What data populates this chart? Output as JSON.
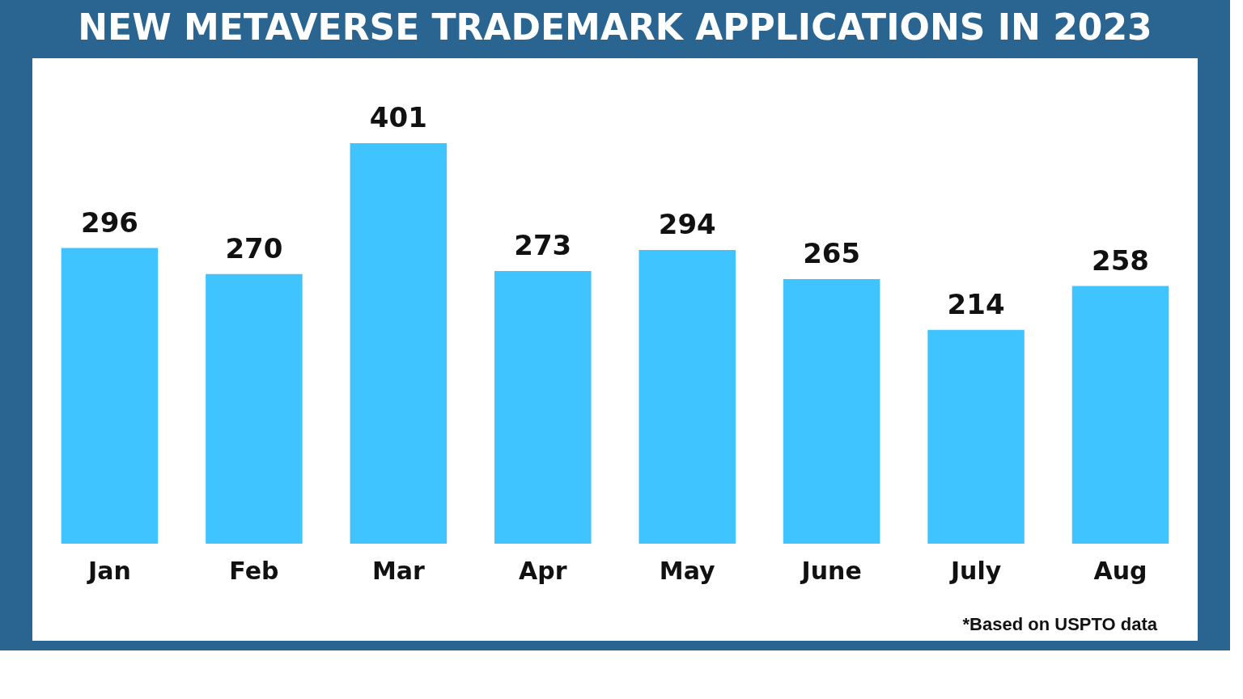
{
  "chart_data": {
    "type": "bar",
    "title": "NEW METAVERSE TRADEMARK APPLICATIONS IN 2023",
    "categories": [
      "Jan",
      "Feb",
      "Mar",
      "Apr",
      "May",
      "June",
      "July",
      "Aug"
    ],
    "values": [
      296,
      270,
      401,
      273,
      294,
      265,
      214,
      258
    ],
    "color": "#40c4ff",
    "data_labels": true,
    "grid": false,
    "annotations": [
      "*Based on USPTO data"
    ]
  }
}
